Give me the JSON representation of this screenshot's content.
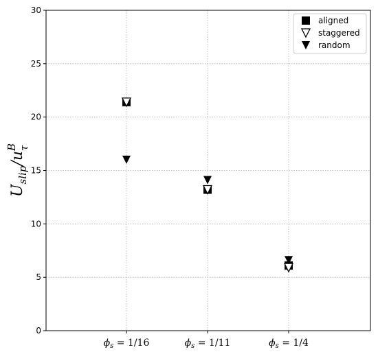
{
  "chart_data": {
    "type": "scatter",
    "categories": [
      "1/16",
      "1/11",
      "1/4"
    ],
    "category_symbol": "ϕ",
    "category_subscript": "s",
    "ylabel": {
      "main": "U",
      "sub": "slip",
      "sep": "/u",
      "sup": "B",
      "sub2": "τ"
    },
    "ylim": [
      0,
      30
    ],
    "yticks": [
      0,
      5,
      10,
      15,
      20,
      25,
      30
    ],
    "grid": true,
    "legend_position": "top-right",
    "series": [
      {
        "name": "aligned",
        "marker": "square",
        "color": "#000000",
        "values": [
          21.4,
          13.2,
          6.1
        ]
      },
      {
        "name": "staggered",
        "marker": "triangle-down-open",
        "color": "#000000",
        "values": [
          21.4,
          13.2,
          5.9
        ]
      },
      {
        "name": "random",
        "marker": "triangle-down",
        "color": "#000000",
        "values": [
          16.0,
          14.1,
          6.6
        ]
      }
    ]
  }
}
